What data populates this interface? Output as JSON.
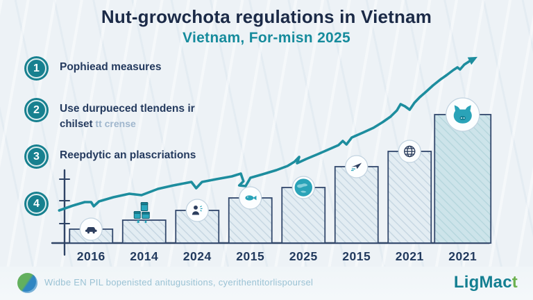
{
  "title": {
    "main": "Nut-growchota regulations in Vietnam",
    "subtitle": "Vietnam, For-misn 2025"
  },
  "steps": [
    {
      "number": "1",
      "line1": "Pophiead measures",
      "line2_dark": "",
      "line2_light": ""
    },
    {
      "number": "2",
      "line1": "Use durpueced tlendens ir",
      "line2_dark": "chilset",
      "line2_light": " tt crense"
    },
    {
      "number": "3",
      "line1": "Reepdytic an plascriations",
      "line2_dark": "",
      "line2_light": ""
    },
    {
      "number": "4",
      "line1": "",
      "line2_dark": "",
      "line2_light": ""
    }
  ],
  "footer": {
    "caption": "Widbe EN PIL bopenisted anitugusitions, cyerithentitorlispoursel",
    "logo_icon": "globe-leaf-logo-icon",
    "brand_main": "LigMac",
    "brand_accent": "t"
  },
  "colors": {
    "accent_teal": "#1d8d9e",
    "navy": "#1b2a47",
    "bar_fill": "#e3edf3",
    "bar_fill_highlight": "#cde4ea",
    "bar_border": "#32486c",
    "label_navy": "#223a5e",
    "footer_text": "#9ac2d4",
    "brand_green": "#6cb14e"
  },
  "chart_data": {
    "type": "bar",
    "title": "Nut-growchota regulations in Vietnam",
    "xlabel": "",
    "ylabel": "",
    "categories": [
      "2016",
      "2014",
      "2024",
      "2015",
      "2025",
      "2015",
      "2021",
      "2021"
    ],
    "values": [
      20,
      33,
      47,
      65,
      80,
      110,
      132,
      185
    ],
    "value_note": "relative bar heights; no y-axis value labels are shown in the image",
    "ylim": [
      0,
      280
    ],
    "grid": false,
    "legend": "none",
    "highlight_index": 7,
    "icons": [
      "car-icon",
      "packages-icon",
      "person-icon",
      "fish-icon",
      "globe-teal-icon",
      "paper-plane-icon",
      "globe-grid-icon",
      "pig-icon"
    ],
    "trend_line": {
      "style": "jagged rising line with arrowhead",
      "color": "#1d8d9e",
      "points": [
        [
          -0.1,
          47
        ],
        [
          0.16,
          54
        ],
        [
          0.38,
          59
        ],
        [
          0.5,
          59
        ],
        [
          0.55,
          53
        ],
        [
          0.65,
          60
        ],
        [
          0.92,
          66
        ],
        [
          1.22,
          71
        ],
        [
          1.45,
          69
        ],
        [
          1.76,
          78
        ],
        [
          2.05,
          83
        ],
        [
          2.39,
          88
        ],
        [
          2.48,
          79
        ],
        [
          2.59,
          88
        ],
        [
          2.86,
          92
        ],
        [
          3.15,
          96
        ],
        [
          3.32,
          100
        ],
        [
          3.37,
          89
        ],
        [
          3.29,
          83
        ],
        [
          3.41,
          82
        ],
        [
          3.5,
          94
        ],
        [
          3.73,
          99
        ],
        [
          3.99,
          105
        ],
        [
          4.2,
          111
        ],
        [
          4.33,
          117
        ],
        [
          4.42,
          124
        ],
        [
          4.38,
          115
        ],
        [
          4.55,
          121
        ],
        [
          4.77,
          128
        ],
        [
          4.98,
          135
        ],
        [
          5.16,
          141
        ],
        [
          5.24,
          147
        ],
        [
          5.31,
          142
        ],
        [
          5.41,
          152
        ],
        [
          5.62,
          159
        ],
        [
          5.82,
          166
        ],
        [
          5.99,
          174
        ],
        [
          6.14,
          182
        ],
        [
          6.26,
          191
        ],
        [
          6.33,
          200
        ],
        [
          6.41,
          197
        ],
        [
          6.5,
          192
        ],
        [
          6.59,
          202
        ],
        [
          6.69,
          210
        ],
        [
          6.81,
          218
        ],
        [
          6.94,
          227
        ],
        [
          7.07,
          235
        ],
        [
          7.2,
          242
        ],
        [
          7.32,
          249
        ],
        [
          7.4,
          253
        ],
        [
          7.45,
          250
        ],
        [
          7.53,
          257
        ],
        [
          7.65,
          263
        ]
      ]
    }
  }
}
